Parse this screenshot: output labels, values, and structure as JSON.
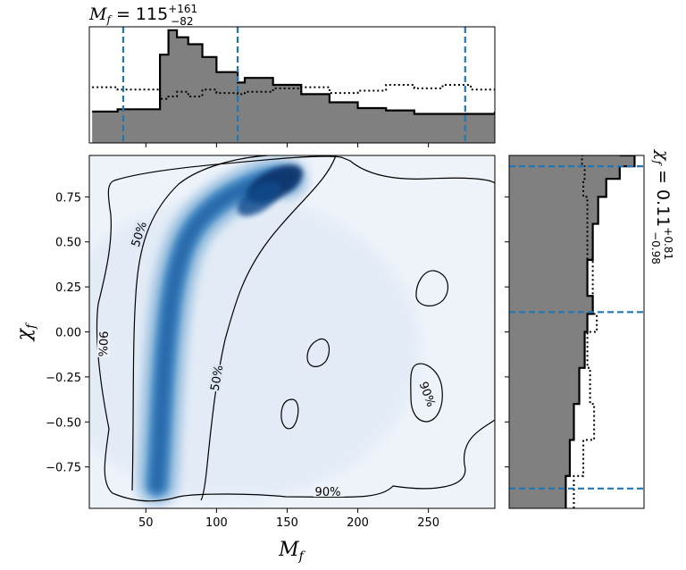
{
  "chart_data": [
    {
      "type": "heatmap",
      "panel": "joint",
      "xlabel": "M_f",
      "ylabel": "χ_f",
      "xlim": [
        10,
        297
      ],
      "ylim": [
        -0.98,
        0.98
      ],
      "xticks": [
        "50",
        "100",
        "150",
        "200",
        "250"
      ],
      "yticks": [
        "−0.75",
        "−0.50",
        "−0.25",
        "0.00",
        "0.25",
        "0.50",
        "0.75"
      ],
      "density_ridge": [
        {
          "x": 58,
          "y": -0.85
        },
        {
          "x": 60,
          "y": -0.6
        },
        {
          "x": 62,
          "y": -0.3
        },
        {
          "x": 65,
          "y": 0.0
        },
        {
          "x": 70,
          "y": 0.3
        },
        {
          "x": 80,
          "y": 0.55
        },
        {
          "x": 100,
          "y": 0.72
        },
        {
          "x": 125,
          "y": 0.82
        },
        {
          "x": 140,
          "y": 0.86
        },
        {
          "x": 150,
          "y": 0.85
        }
      ],
      "peak": {
        "x": 137,
        "y": 0.84
      },
      "contour_levels": [
        "50%",
        "90%"
      ]
    },
    {
      "type": "histogram",
      "panel": "top-marginal",
      "title_main": "M",
      "title_sub": "f",
      "title_value": " = 115",
      "title_upper": "+161",
      "title_lower": "−82",
      "x": [
        12,
        30,
        60,
        66,
        72,
        80,
        90,
        100,
        115,
        120,
        140,
        160,
        180,
        200,
        220,
        240,
        260,
        280,
        297
      ],
      "posterior": [
        0.27,
        0.29,
        0.76,
        0.97,
        0.91,
        0.85,
        0.74,
        0.61,
        0.52,
        0.56,
        0.5,
        0.42,
        0.35,
        0.3,
        0.28,
        0.25,
        0.25,
        0.25,
        0.27
      ],
      "prior": [
        0.48,
        0.46,
        0.38,
        0.4,
        0.44,
        0.4,
        0.46,
        0.43,
        0.42,
        0.44,
        0.47,
        0.48,
        0.43,
        0.45,
        0.5,
        0.47,
        0.5,
        0.46,
        0.43
      ],
      "credible_lines": [
        34,
        115,
        276
      ]
    },
    {
      "type": "histogram",
      "panel": "right-marginal",
      "title_main": "χ",
      "title_sub": "f",
      "title_value": " = 0.11",
      "title_upper": "+0.81",
      "title_lower": "−0.98",
      "y": [
        -0.98,
        -0.8,
        -0.6,
        -0.4,
        -0.2,
        0.0,
        0.1,
        0.2,
        0.4,
        0.6,
        0.75,
        0.85,
        0.92,
        0.98
      ],
      "posterior": [
        0.42,
        0.45,
        0.48,
        0.52,
        0.56,
        0.58,
        0.62,
        0.58,
        0.62,
        0.66,
        0.72,
        0.82,
        0.93,
        0.82
      ],
      "prior": [
        0.48,
        0.55,
        0.63,
        0.6,
        0.58,
        0.65,
        0.62,
        0.62,
        0.58,
        0.58,
        0.55,
        0.56,
        0.54,
        0.55
      ],
      "credible_lines": [
        -0.87,
        0.11,
        0.92
      ]
    }
  ],
  "colors": {
    "fill": "#808080",
    "dash": "#1f77b4",
    "density": "#08306b",
    "background": "#eef3fa"
  }
}
